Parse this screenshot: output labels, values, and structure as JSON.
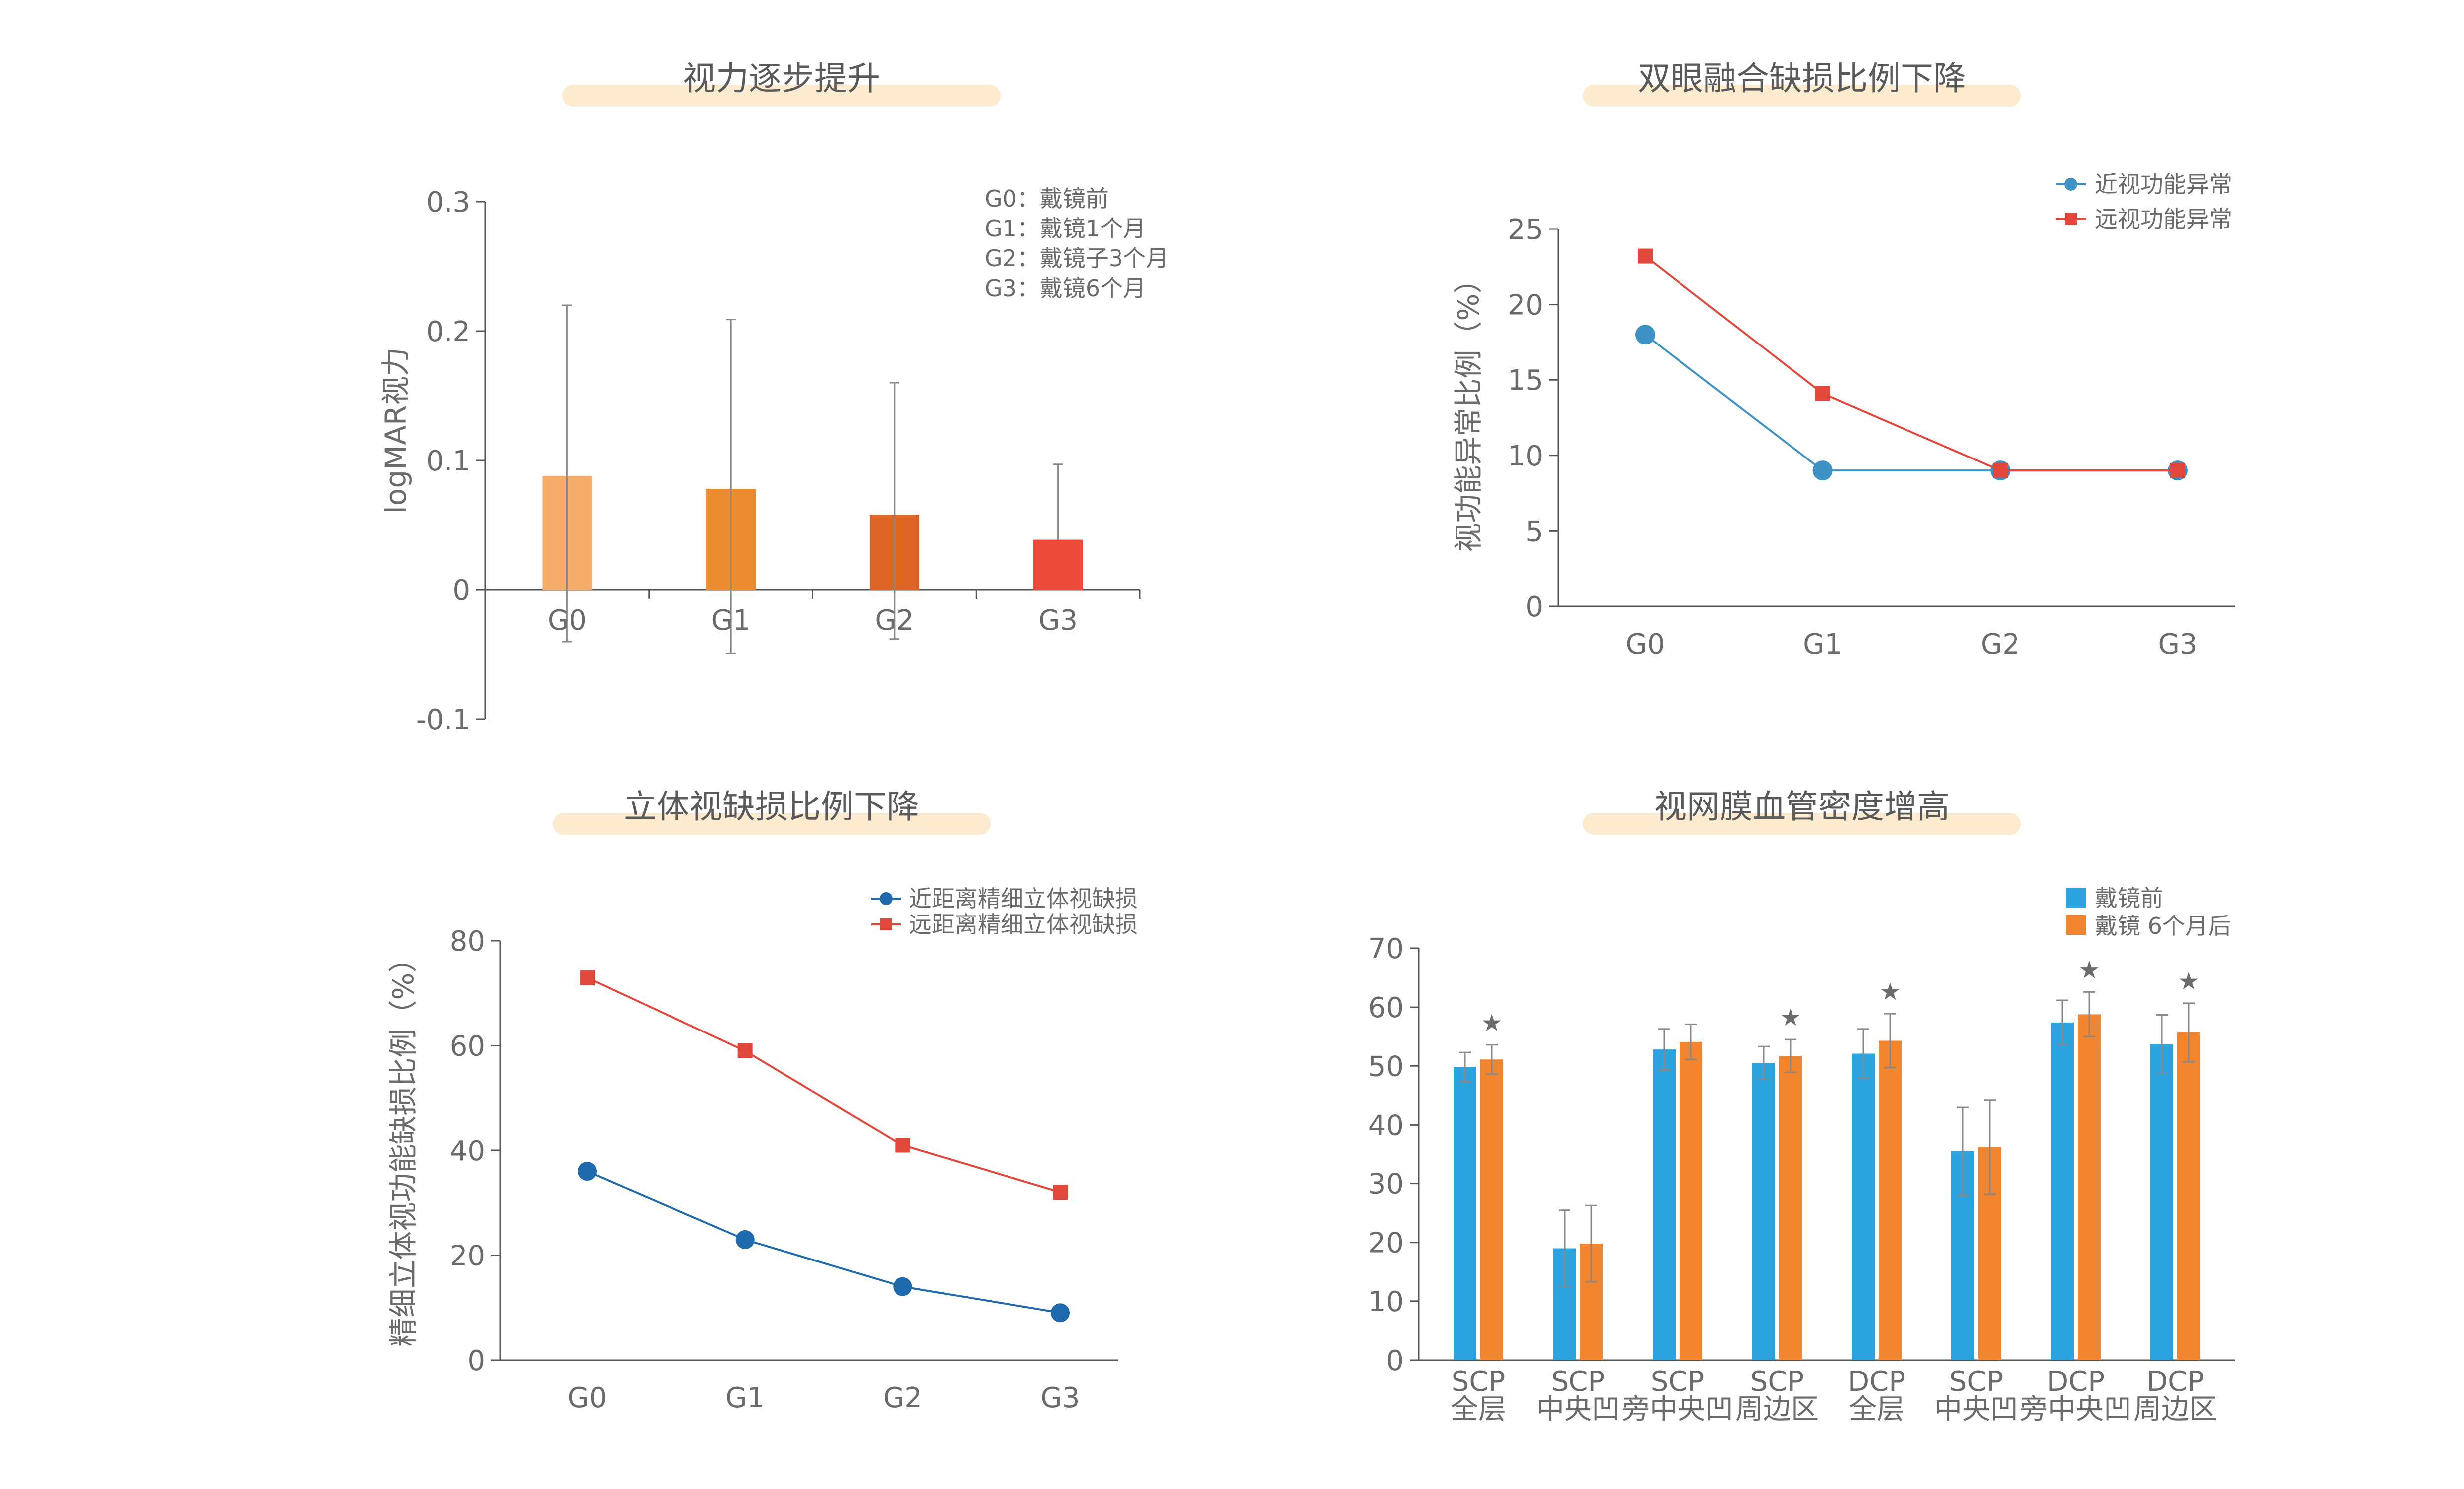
{
  "colors": {
    "title_bar": "#fdebd0",
    "axis": "#555555",
    "text": "#6b6b6b",
    "bar_g0": "#f5ad6c",
    "bar_g1": "#ed8b30",
    "bar_g2": "#dc6427",
    "bar_g3": "#ea4a38",
    "blue_line": "#3f92c6",
    "red_line": "#e2473c",
    "dark_blue": "#1f6aad",
    "blue_bar": "#2aa3de",
    "orange_bar": "#f28530",
    "star": "#f0892b"
  },
  "chart_data": [
    {
      "type": "bar",
      "title": "视力逐步提升",
      "ylabel": "logMAR视力",
      "xlabel": "",
      "categories": [
        "G0",
        "G1",
        "G2",
        "G3"
      ],
      "values": [
        0.088,
        0.078,
        0.058,
        0.039
      ],
      "err_upper": [
        0.22,
        0.209,
        0.16,
        0.097
      ],
      "err_lower": [
        -0.04,
        -0.049,
        -0.038,
        null
      ],
      "ylim": [
        -0.1,
        0.3
      ],
      "yticks": [
        "0.3",
        "0.2",
        "0.1",
        "0",
        "-0.1"
      ],
      "ytick_values": [
        0.3,
        0.2,
        0.1,
        0,
        -0.1
      ],
      "notes": [
        "G0：戴镜前",
        "G1：戴镜1个月",
        "G2：戴镜子3个月",
        "G3：戴镜6个月"
      ],
      "grid": false
    },
    {
      "type": "line",
      "title": "双眼融合缺损比例下降",
      "ylabel": "视功能异常比例（%）",
      "xlabel": "",
      "categories": [
        "G0",
        "G1",
        "G2",
        "G3"
      ],
      "series": [
        {
          "name": "近视功能异常",
          "values": [
            18,
            9,
            9,
            9
          ],
          "marker": "circle"
        },
        {
          "name": "远视功能异常",
          "values": [
            23.2,
            14.1,
            9,
            9
          ],
          "marker": "square"
        }
      ],
      "ylim": [
        0,
        25
      ],
      "yticks": [
        "25",
        "20",
        "15",
        "10",
        "5",
        "0"
      ],
      "ytick_values": [
        25,
        20,
        15,
        10,
        5,
        0
      ],
      "legend": "top-right",
      "grid": false
    },
    {
      "type": "line",
      "title": "立体视缺损比例下降",
      "ylabel": "精细立体视功能缺损比例（%）",
      "xlabel": "",
      "categories": [
        "G0",
        "G1",
        "G2",
        "G3"
      ],
      "series": [
        {
          "name": "近距离精细立体视缺损",
          "values": [
            36,
            23,
            14,
            9
          ],
          "marker": "circle"
        },
        {
          "name": "远距离精细立体视缺损",
          "values": [
            73,
            59,
            41,
            32
          ],
          "marker": "square"
        }
      ],
      "ylim": [
        0,
        80
      ],
      "yticks": [
        "80",
        "60",
        "40",
        "20",
        "0"
      ],
      "ytick_values": [
        80,
        60,
        40,
        20,
        0
      ],
      "legend": "top-right",
      "grid": false
    },
    {
      "type": "bar",
      "title": "视网膜血管密度增高",
      "ylabel": "",
      "xlabel": "",
      "categories": [
        [
          "SCP",
          "全层"
        ],
        [
          "SCP",
          "中央凹"
        ],
        [
          "SCP",
          "旁中央凹"
        ],
        [
          "SCP",
          "周边区"
        ],
        [
          "DCP",
          "全层"
        ],
        [
          "SCP",
          "中央凹"
        ],
        [
          "DCP",
          "旁中央凹"
        ],
        [
          "DCP",
          "周边区"
        ]
      ],
      "series": [
        {
          "name": "戴镜前",
          "values": [
            49.8,
            19,
            52.8,
            50.5,
            52.1,
            35.5,
            57.4,
            53.7
          ],
          "err": [
            2.5,
            6.5,
            3.5,
            2.8,
            4.2,
            7.5,
            3.8,
            5.0
          ]
        },
        {
          "name": "戴镜 6个月后",
          "values": [
            51.1,
            19.8,
            54.1,
            51.7,
            54.3,
            36.2,
            58.8,
            55.7
          ],
          "err": [
            2.5,
            6.5,
            3.0,
            2.8,
            4.6,
            8.0,
            3.8,
            5.0
          ]
        }
      ],
      "significant": [
        true,
        false,
        false,
        true,
        true,
        false,
        true,
        true
      ],
      "significance_marker": "★",
      "ylim": [
        0,
        70
      ],
      "yticks": [
        "70",
        "60",
        "50",
        "40",
        "30",
        "20",
        "10",
        "0"
      ],
      "ytick_values": [
        70,
        60,
        50,
        40,
        30,
        20,
        10,
        0
      ],
      "legend": "top-right",
      "grid": false
    }
  ]
}
